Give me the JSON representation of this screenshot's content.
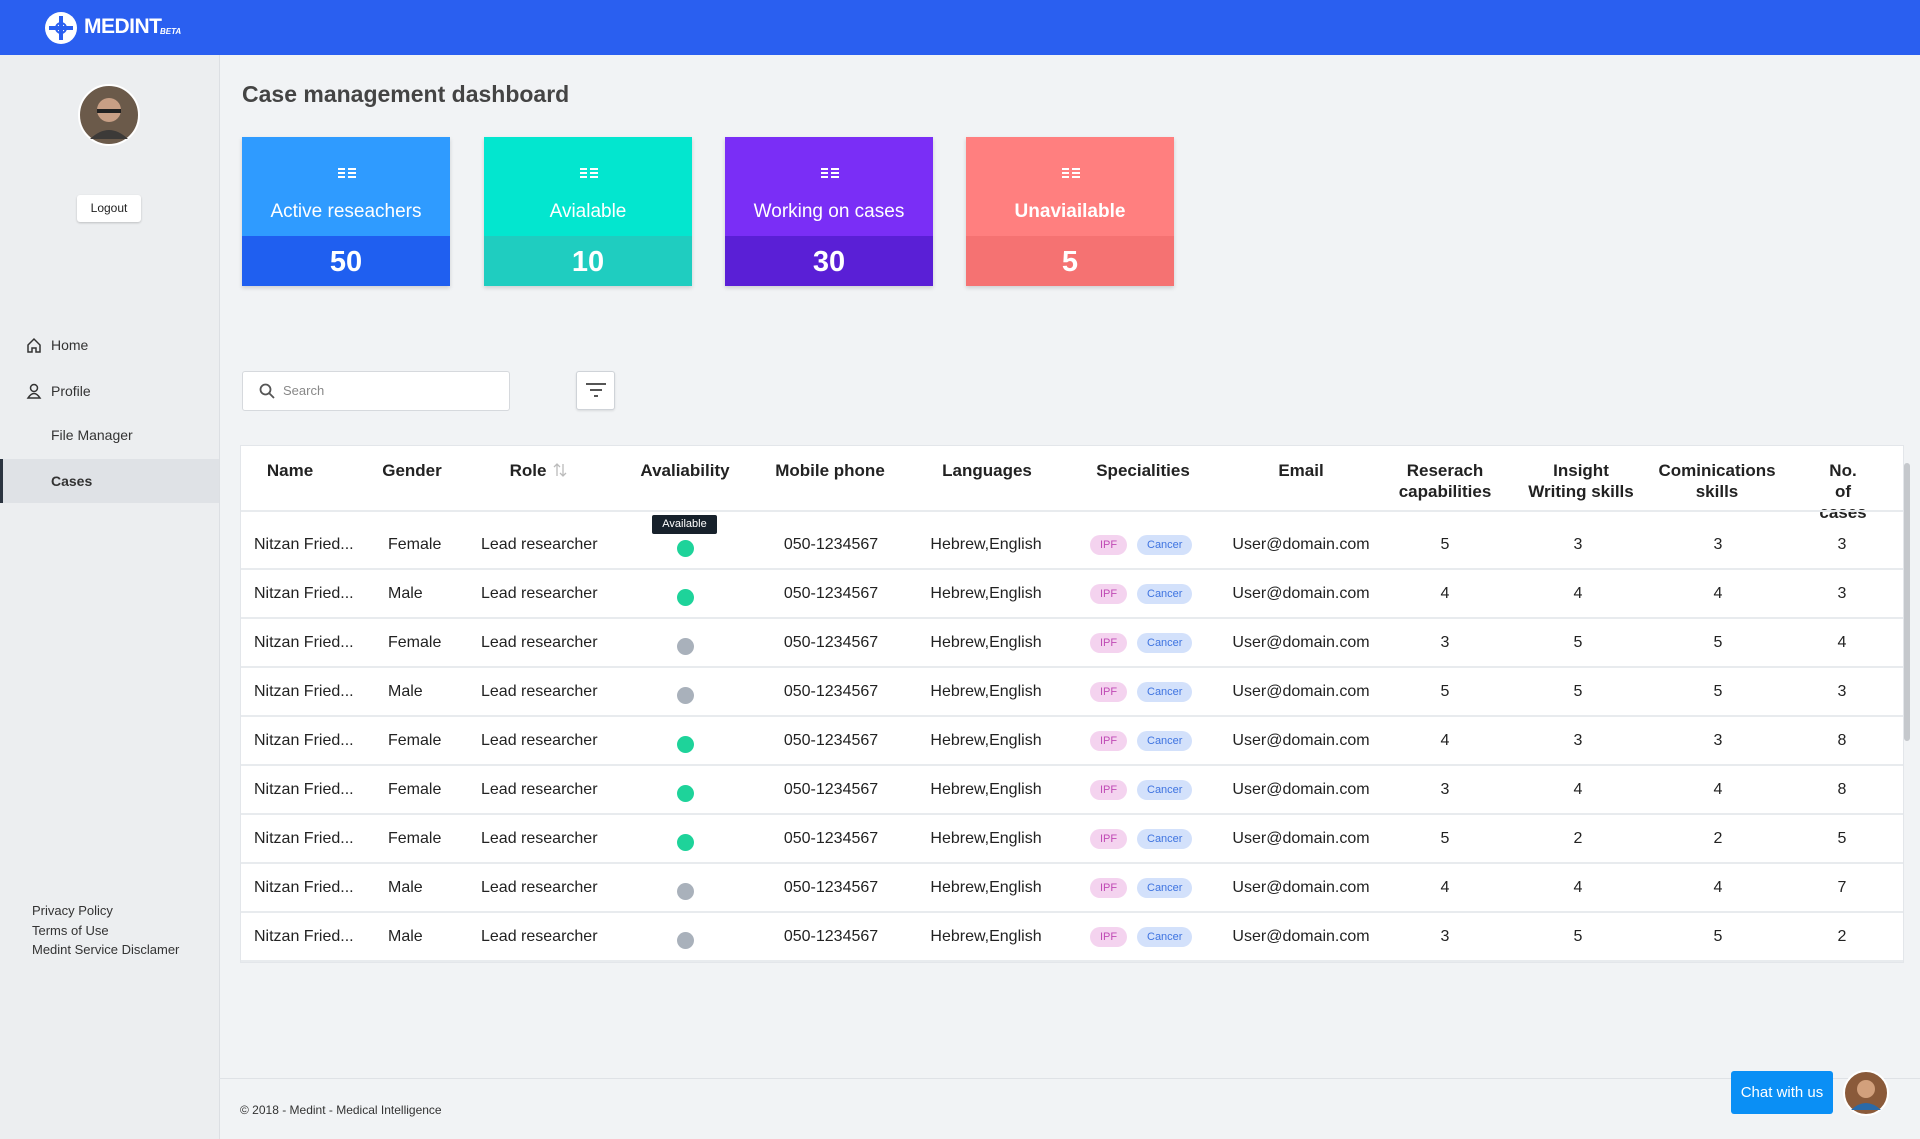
{
  "header": {
    "logo": "MEDINT",
    "badge": "BETA"
  },
  "sidebar": {
    "logout": "Logout",
    "nav": [
      "Home",
      "Profile",
      "File Manager",
      "Cases"
    ],
    "active": 3,
    "links": [
      "Privacy Policy",
      "Terms of Use",
      "Medint Service Disclamer"
    ]
  },
  "title": "Case management dashboard",
  "cards": [
    {
      "label": "Active reseachers",
      "value": 50,
      "top": "#2f9bff",
      "bottom": "#1f5ff0"
    },
    {
      "label": "Avialable",
      "value": 10,
      "top": "#03e6cf",
      "bottom": "#1fcdc0"
    },
    {
      "label": "Working on cases",
      "value": 30,
      "top": "#7a2ef6",
      "bottom": "#5a1fd6"
    },
    {
      "label": "Unaviailable",
      "value": 5,
      "top": "#ff7f7f",
      "bottom": "#f57272"
    }
  ],
  "search": {
    "placeholder": "Search"
  },
  "table": {
    "headers": [
      "Name",
      "Gender",
      "Role",
      "Avaliability",
      "Mobile phone",
      "Languages",
      "Specialities",
      "Email",
      "Reserach\ncapabilities",
      "Insight\nWriting skills",
      "Cominications\nskills",
      "No.\nof cases"
    ],
    "tooltip": "Available",
    "status_colors": {
      "available": "#1ed39a",
      "unavailable": "#a9b1bb"
    },
    "rows": [
      {
        "name": "Nitzan Fried...",
        "gender": "Female",
        "role": "Lead researcher",
        "status": "available",
        "phone": "050-1234567",
        "languages": "Hebrew,English",
        "specialities": [
          "IPF",
          "Cancer"
        ],
        "email": "User@domain.com",
        "research": 5,
        "insight": 3,
        "communication": 3,
        "cases": 3
      },
      {
        "name": "Nitzan Fried...",
        "gender": "Male",
        "role": "Lead researcher",
        "status": "available",
        "phone": "050-1234567",
        "languages": "Hebrew,English",
        "specialities": [
          "IPF",
          "Cancer"
        ],
        "email": "User@domain.com",
        "research": 4,
        "insight": 4,
        "communication": 4,
        "cases": 3
      },
      {
        "name": "Nitzan Fried...",
        "gender": "Female",
        "role": "Lead researcher",
        "status": "unavailable",
        "phone": "050-1234567",
        "languages": "Hebrew,English",
        "specialities": [
          "IPF",
          "Cancer"
        ],
        "email": "User@domain.com",
        "research": 3,
        "insight": 5,
        "communication": 5,
        "cases": 4
      },
      {
        "name": "Nitzan Fried...",
        "gender": "Male",
        "role": "Lead researcher",
        "status": "unavailable",
        "phone": "050-1234567",
        "languages": "Hebrew,English",
        "specialities": [
          "IPF",
          "Cancer"
        ],
        "email": "User@domain.com",
        "research": 5,
        "insight": 5,
        "communication": 5,
        "cases": 3
      },
      {
        "name": "Nitzan Fried...",
        "gender": "Female",
        "role": "Lead researcher",
        "status": "available",
        "phone": "050-1234567",
        "languages": "Hebrew,English",
        "specialities": [
          "IPF",
          "Cancer"
        ],
        "email": "User@domain.com",
        "research": 4,
        "insight": 3,
        "communication": 3,
        "cases": 8
      },
      {
        "name": "Nitzan Fried...",
        "gender": "Female",
        "role": "Lead researcher",
        "status": "available",
        "phone": "050-1234567",
        "languages": "Hebrew,English",
        "specialities": [
          "IPF",
          "Cancer"
        ],
        "email": "User@domain.com",
        "research": 3,
        "insight": 4,
        "communication": 4,
        "cases": 8
      },
      {
        "name": "Nitzan Fried...",
        "gender": "Female",
        "role": "Lead researcher",
        "status": "available",
        "phone": "050-1234567",
        "languages": "Hebrew,English",
        "specialities": [
          "IPF",
          "Cancer"
        ],
        "email": "User@domain.com",
        "research": 5,
        "insight": 2,
        "communication": 2,
        "cases": 5
      },
      {
        "name": "Nitzan Fried...",
        "gender": "Male",
        "role": "Lead researcher",
        "status": "unavailable",
        "phone": "050-1234567",
        "languages": "Hebrew,English",
        "specialities": [
          "IPF",
          "Cancer"
        ],
        "email": "User@domain.com",
        "research": 4,
        "insight": 4,
        "communication": 4,
        "cases": 7
      },
      {
        "name": "Nitzan Fried...",
        "gender": "Male",
        "role": "Lead researcher",
        "status": "unavailable",
        "phone": "050-1234567",
        "languages": "Hebrew,English",
        "specialities": [
          "IPF",
          "Cancer"
        ],
        "email": "User@domain.com",
        "research": 3,
        "insight": 5,
        "communication": 5,
        "cases": 2
      }
    ]
  },
  "footer": {
    "copyright": "© 2018 - Medint - Medical Intelligence",
    "chat": "Chat with us"
  }
}
